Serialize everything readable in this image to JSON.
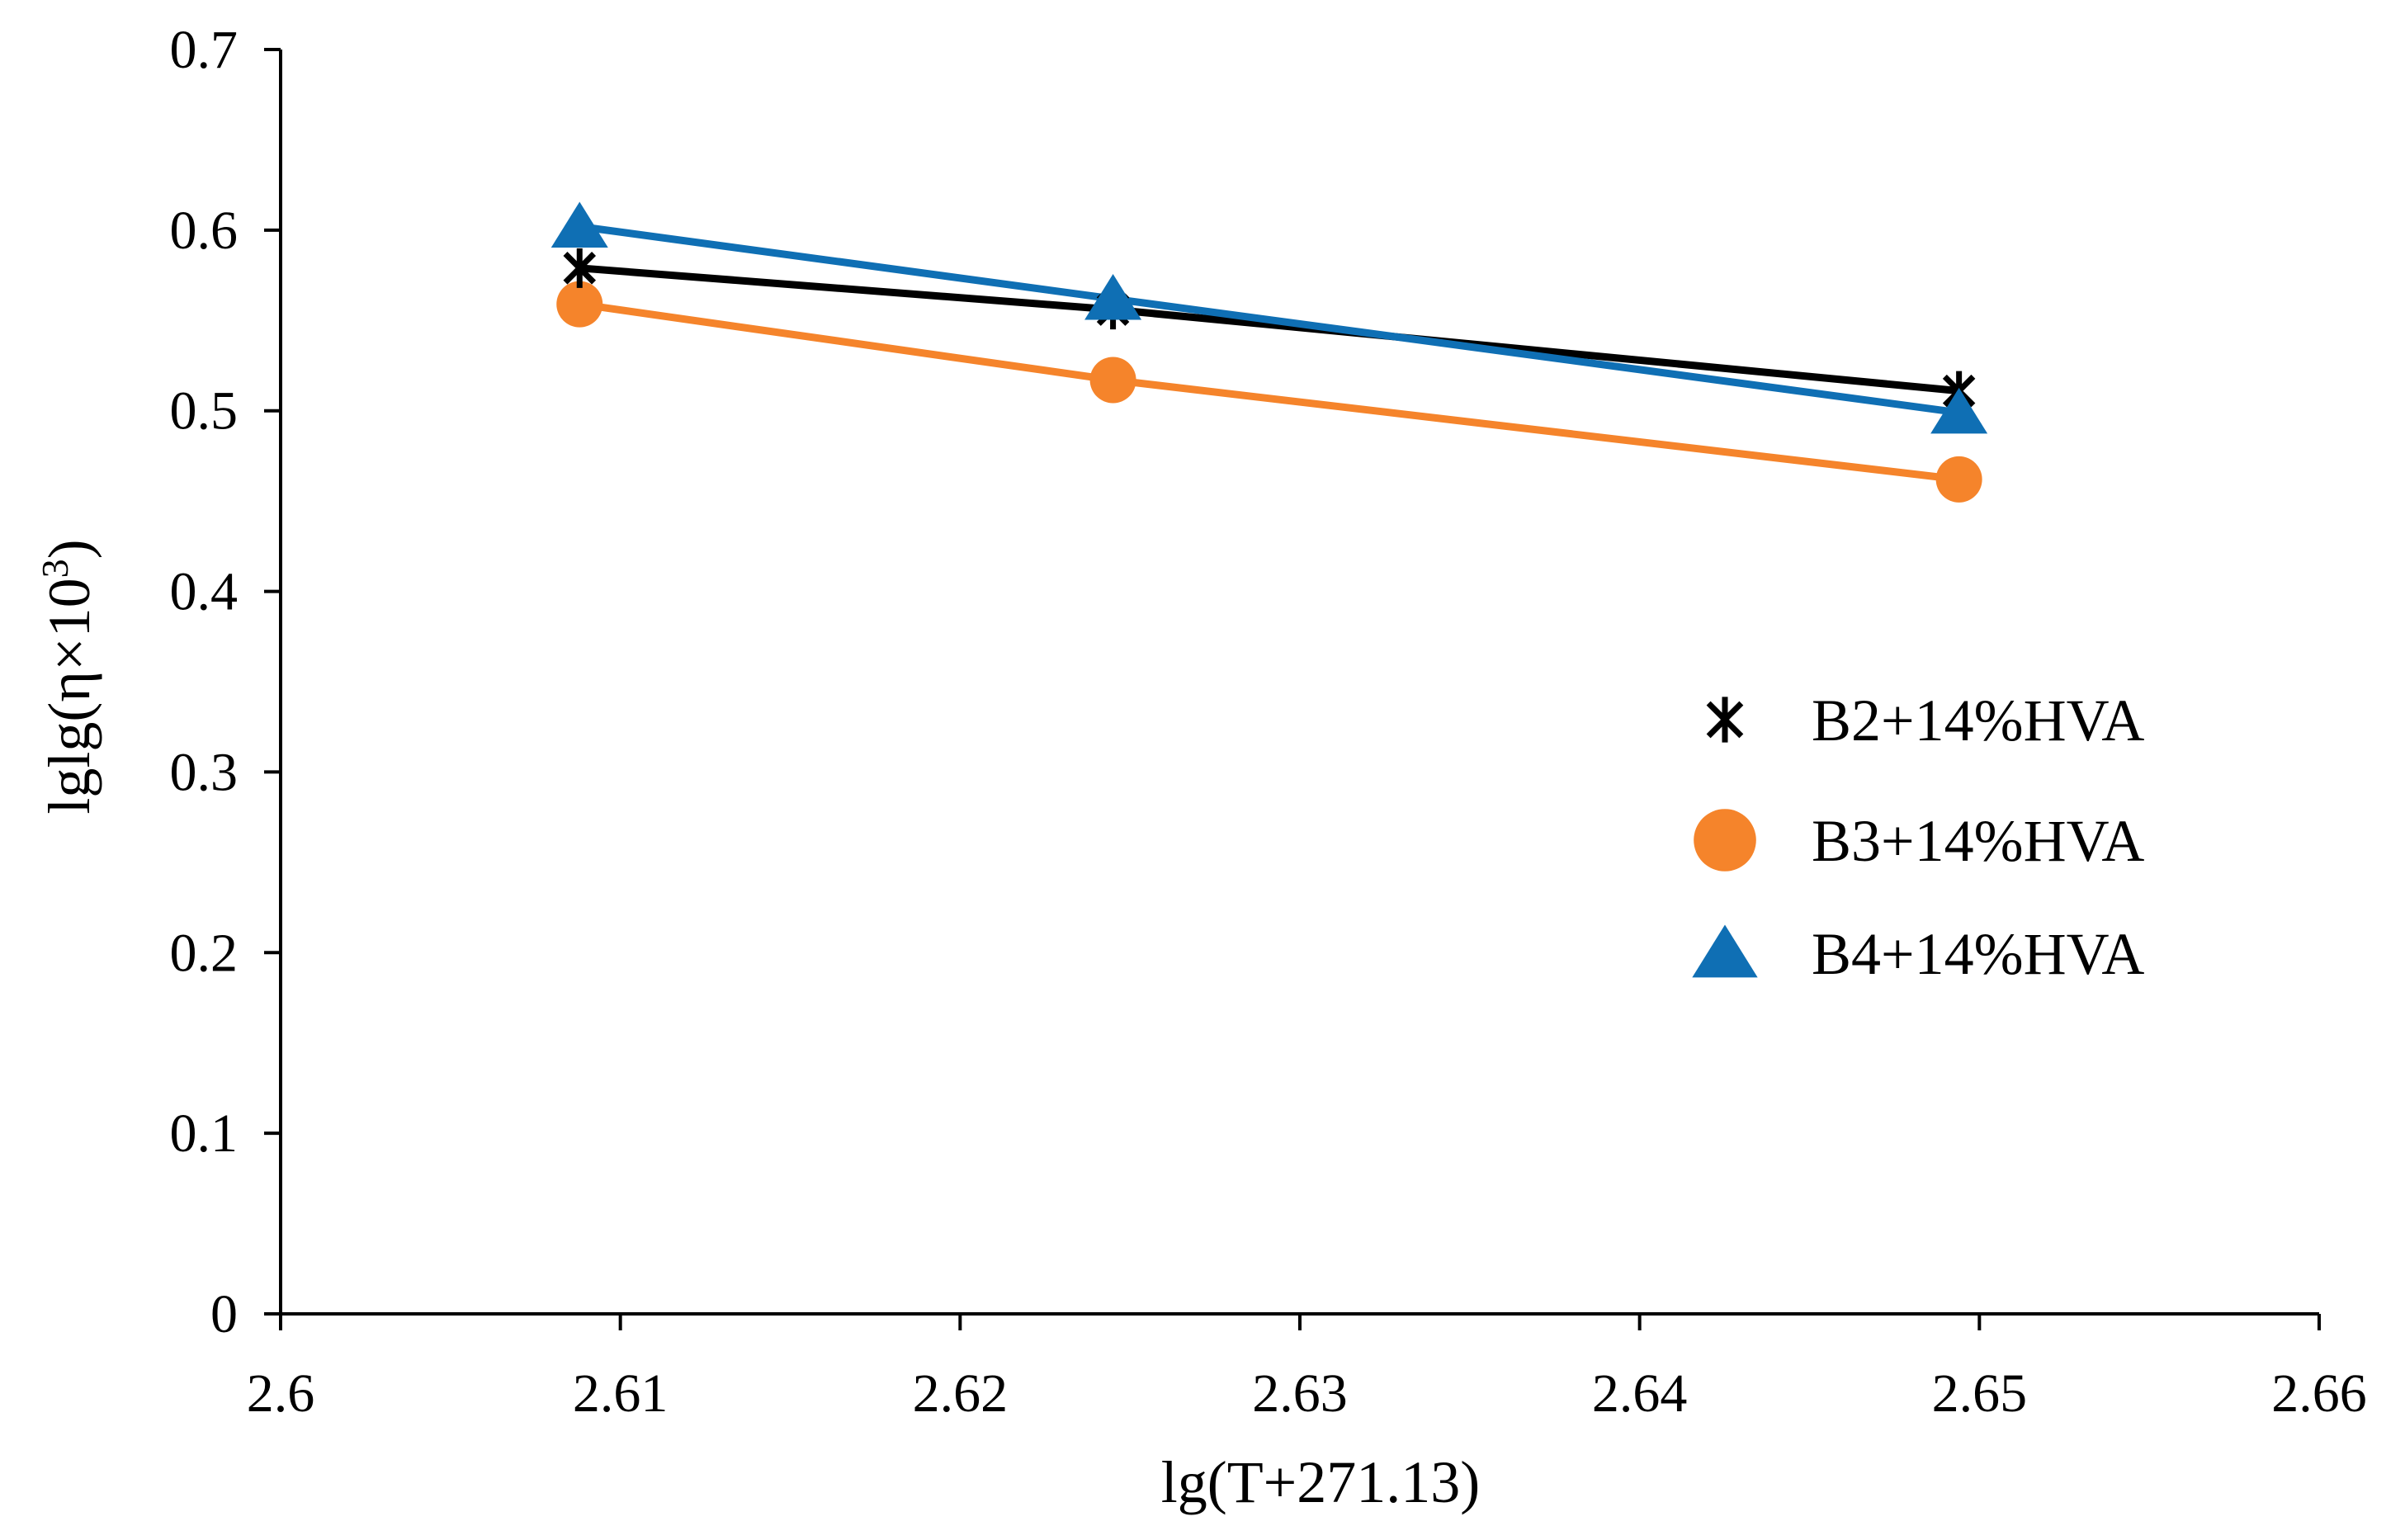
{
  "chart_data": {
    "type": "line",
    "title": "",
    "xlabel": "lg(T+271.13)",
    "ylabel_base": "lglg(η×10",
    "ylabel_superscript": "3",
    "ylabel_close": ")",
    "xlim": [
      2.6,
      2.66
    ],
    "ylim": [
      0,
      0.7
    ],
    "x_ticks": [
      2.6,
      2.61,
      2.62,
      2.63,
      2.64,
      2.65,
      2.66
    ],
    "y_ticks": [
      0,
      0.1,
      0.2,
      0.3,
      0.4,
      0.5,
      0.6,
      0.7
    ],
    "x_tick_labels": [
      "2.6",
      "2.61",
      "2.62",
      "2.63",
      "2.64",
      "2.65",
      "2.66"
    ],
    "y_tick_labels": [
      "0",
      "0.1",
      "0.2",
      "0.3",
      "0.4",
      "0.5",
      "0.6",
      "0.7"
    ],
    "grid": false,
    "legend_position": "center-right",
    "series": [
      {
        "name": "B2+14%HVA",
        "marker": "asterisk",
        "color": "#000000",
        "x": [
          2.6088,
          2.6245,
          2.6494
        ],
        "y": [
          0.579,
          0.556,
          0.511
        ]
      },
      {
        "name": "B3+14%HVA",
        "marker": "circle",
        "color": "#F5842B",
        "x": [
          2.6088,
          2.6245,
          2.6494
        ],
        "y": [
          0.559,
          0.517,
          0.462
        ]
      },
      {
        "name": "B4+14%HVA",
        "marker": "triangle",
        "color": "#0F6FB4",
        "x": [
          2.6088,
          2.6245,
          2.6494
        ],
        "y": [
          0.602,
          0.562,
          0.499
        ]
      }
    ]
  }
}
